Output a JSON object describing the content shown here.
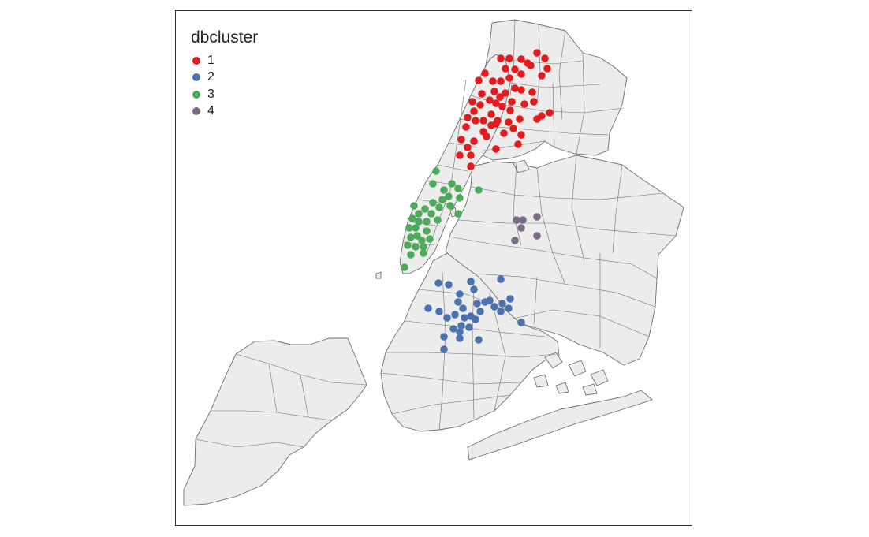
{
  "legend": {
    "title": "dbcluster",
    "entries": [
      {
        "label": "1",
        "color": "#e41a1c"
      },
      {
        "label": "2",
        "color": "#4a72b0"
      },
      {
        "label": "3",
        "color": "#4daa5b"
      },
      {
        "label": "4",
        "color": "#7a6a85"
      }
    ]
  },
  "style": {
    "land_fill": "#ececec",
    "boundary_stroke": "#6e6e6e",
    "frame_stroke": "#333333"
  }
}
